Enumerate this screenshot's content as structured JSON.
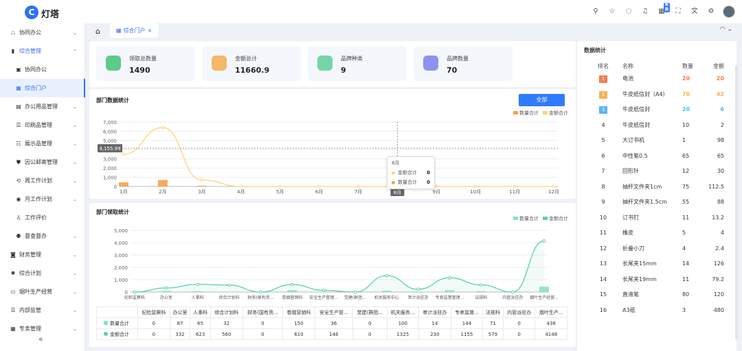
{
  "app": {
    "logo_letter": "C",
    "name": "灯塔",
    "badge": "新版"
  },
  "sidebar": {
    "items": [
      {
        "label": "协同办公",
        "icon": "people-icon",
        "glyph": "⛬",
        "chev": "⌄",
        "level": 0
      },
      {
        "label": "综合管理",
        "icon": "manage-icon",
        "glyph": "▮",
        "chev": "⌃",
        "level": 0,
        "state": "parent-active"
      },
      {
        "label": "协同办公",
        "icon": "doc-icon",
        "glyph": "▣",
        "chev": "",
        "level": 1
      },
      {
        "label": "综合门户",
        "icon": "grid-icon",
        "glyph": "▦",
        "chev": "",
        "level": 1,
        "state": "active"
      },
      {
        "label": "办公用品管理",
        "icon": "clipboard-icon",
        "glyph": "▤",
        "chev": "⌄",
        "level": 1
      },
      {
        "label": "印刷品管理",
        "icon": "list-icon",
        "glyph": "☰",
        "chev": "⌄",
        "level": 1
      },
      {
        "label": "展示品管理",
        "icon": "display-icon",
        "glyph": "☷",
        "chev": "⌄",
        "level": 1
      },
      {
        "label": "因公邮寄管理",
        "icon": "shield-icon",
        "glyph": "⛊",
        "chev": "⌄",
        "level": 1
      },
      {
        "label": "周工作计划",
        "icon": "refresh-icon",
        "glyph": "⟲",
        "chev": "⌄",
        "level": 1
      },
      {
        "label": "月工作计划",
        "icon": "eye-icon",
        "glyph": "◉",
        "chev": "⌄",
        "level": 1
      },
      {
        "label": "工作评价",
        "icon": "user-icon",
        "glyph": "♙",
        "chev": "",
        "level": 1
      },
      {
        "label": "督查督办",
        "icon": "team-icon",
        "glyph": "⚉",
        "chev": "⌄",
        "level": 1
      },
      {
        "label": "财务管理",
        "icon": "finance-icon",
        "glyph": "◙",
        "chev": "⌄",
        "level": 0
      },
      {
        "label": "综合计划",
        "icon": "sun-icon",
        "glyph": "✺",
        "chev": "⌄",
        "level": 0
      },
      {
        "label": "烟叶生产经营",
        "icon": "book-icon",
        "glyph": "▭",
        "chev": "⌄",
        "level": 0
      },
      {
        "label": "内部监管",
        "icon": "menu-icon",
        "glyph": "☰",
        "chev": "⌄",
        "level": 0
      },
      {
        "label": "专卖管理",
        "icon": "calendar-icon",
        "glyph": "▦",
        "chev": "⌄",
        "level": 0
      }
    ],
    "collapse_glyph": "«"
  },
  "tabs": {
    "home_glyph": "⌂",
    "active_tab": "综合门户",
    "close_glyph": "×",
    "tools": "◠  ⌄"
  },
  "stats": [
    {
      "label": "领取总数量",
      "value": "1490",
      "icon": "box-icon",
      "color": "#5ccb8a"
    },
    {
      "label": "金额总计",
      "value": "11660.9",
      "icon": "money-icon",
      "color": "#f3b869"
    },
    {
      "label": "品牌种类",
      "value": "9",
      "icon": "monitor-icon",
      "color": "#73d6a8"
    },
    {
      "label": "品牌数量",
      "value": "70",
      "icon": "cloud-icon",
      "color": "#8b93f0"
    }
  ],
  "dept_stats": {
    "title": "部门数据统计",
    "button": "全部",
    "legend": [
      "数量合计",
      "金额合计"
    ],
    "legend_colors": [
      "#f5a14b",
      "#ffd27a"
    ],
    "cursor_label": "4,155.99",
    "tooltip": {
      "title": "8月",
      "rows": [
        {
          "label": "金额合计",
          "value": "0",
          "color": "#ffd27a"
        },
        {
          "label": "数量合计",
          "value": "0",
          "color": "#f5a14b"
        }
      ]
    }
  },
  "dept_receive": {
    "title": "部门领取统计",
    "legend": [
      "数量合计",
      "金额合计"
    ],
    "legend_colors": [
      "#8fe0c2",
      "#5ad1a7"
    ]
  },
  "table": {
    "headers": [
      "纪检监察科",
      "办公室",
      "人事科",
      "综合计划科",
      "财务(国有资...",
      "卷烟营销科",
      "安全生产管...",
      "党建(群团...",
      "机关服务...",
      "审计派驻办",
      "专卖监督...",
      "法规科",
      "内管派驻办",
      "烟叶生产..."
    ],
    "rows": [
      {
        "label": "数量合计",
        "color": "#8fe0c2",
        "values": [
          "0",
          "87",
          "65",
          "32",
          "0",
          "150",
          "36",
          "0",
          "100",
          "14",
          "144",
          "71",
          "0",
          "436"
        ]
      },
      {
        "label": "金额合计",
        "color": "#5ad1a7",
        "values": [
          "0",
          "332",
          "623",
          "560",
          "0",
          "610",
          "146",
          "0",
          "1325",
          "230",
          "1155",
          "579",
          "0",
          "4148"
        ]
      }
    ]
  },
  "chart_data": [
    {
      "type": "line",
      "title": "部门数据统计",
      "categories": [
        "1月",
        "2月",
        "3月",
        "4月",
        "5月",
        "6月",
        "7月",
        "8月",
        "9月",
        "10月",
        "11月",
        "12月"
      ],
      "series": [
        {
          "name": "金额合计",
          "values": [
            3500,
            6400,
            700,
            0,
            0,
            0,
            0,
            0,
            0,
            0,
            0,
            0
          ]
        },
        {
          "name": "数量合计",
          "values": [
            450,
            700,
            80,
            0,
            0,
            0,
            0,
            0,
            0,
            0,
            0,
            0
          ]
        }
      ],
      "yticks": [
        "0",
        "1,000",
        "2,000",
        "3,000",
        "4,000",
        "5,000",
        "6,000",
        "7,000"
      ],
      "ylim": [
        0,
        7000
      ],
      "legend_position": "top-right"
    },
    {
      "type": "line",
      "title": "部门领取统计",
      "categories": [
        "纪检监察科",
        "办公室",
        "人事科",
        "综合计划科",
        "财务(国有资...",
        "卷烟营销科",
        "安全生产管理...",
        "党建(群团...",
        "机关服务中心",
        "审计派驻办",
        "专卖监督管理...",
        "法规科",
        "内管派驻办",
        "烟叶生产经营..."
      ],
      "series": [
        {
          "name": "数量合计",
          "values": [
            0,
            87,
            65,
            32,
            0,
            150,
            36,
            0,
            100,
            14,
            144,
            71,
            0,
            436
          ]
        },
        {
          "name": "金额合计",
          "values": [
            0,
            332,
            623,
            560,
            0,
            610,
            146,
            0,
            1325,
            230,
            1155,
            579,
            0,
            4148
          ]
        }
      ],
      "yticks": [
        "0",
        "1,000",
        "2,000",
        "3,000",
        "4,000",
        "5,000"
      ],
      "ylim": [
        0,
        5000
      ],
      "legend_position": "top-right"
    }
  ],
  "ranking": {
    "title": "数据统计",
    "headers": [
      "排名",
      "名称",
      "数量",
      "金额"
    ],
    "rows": [
      {
        "rank": "1",
        "name": "电池",
        "qty": "20",
        "amount": "20",
        "badge": "#f47c4d",
        "qcolor": "#f47c4d"
      },
      {
        "rank": "2",
        "name": "牛皮纸信封（A4）",
        "qty": "70",
        "amount": "42",
        "badge": "#f7b156",
        "qcolor": "#f7b156"
      },
      {
        "rank": "3",
        "name": "牛皮纸信封",
        "qty": "20",
        "amount": "6",
        "badge": "#59b6f2",
        "qcolor": "#59b6f2"
      },
      {
        "rank": "4",
        "name": "牛皮纸信封",
        "qty": "10",
        "amount": "2"
      },
      {
        "rank": "5",
        "name": "大订书机",
        "qty": "1",
        "amount": "98"
      },
      {
        "rank": "6",
        "name": "中性笔0.5",
        "qty": "65",
        "amount": "65"
      },
      {
        "rank": "7",
        "name": "回形针",
        "qty": "12",
        "amount": "30"
      },
      {
        "rank": "8",
        "name": "抽杆文件夹1cm",
        "qty": "75",
        "amount": "112.5"
      },
      {
        "rank": "9",
        "name": "抽杆文件夹1.5cm",
        "qty": "55",
        "amount": "88"
      },
      {
        "rank": "10",
        "name": "订书钉",
        "qty": "11",
        "amount": "13.2"
      },
      {
        "rank": "11",
        "name": "橡皮",
        "qty": "5",
        "amount": "4"
      },
      {
        "rank": "12",
        "name": "折叠小刀",
        "qty": "4",
        "amount": "2.4"
      },
      {
        "rank": "13",
        "name": "长尾夹15mm",
        "qty": "14",
        "amount": "126"
      },
      {
        "rank": "14",
        "name": "长尾夹19mm",
        "qty": "11",
        "amount": "79.2"
      },
      {
        "rank": "15",
        "name": "直液笔",
        "qty": "80",
        "amount": "120"
      },
      {
        "rank": "16",
        "name": "A3纸",
        "qty": "3",
        "amount": "480"
      }
    ]
  }
}
